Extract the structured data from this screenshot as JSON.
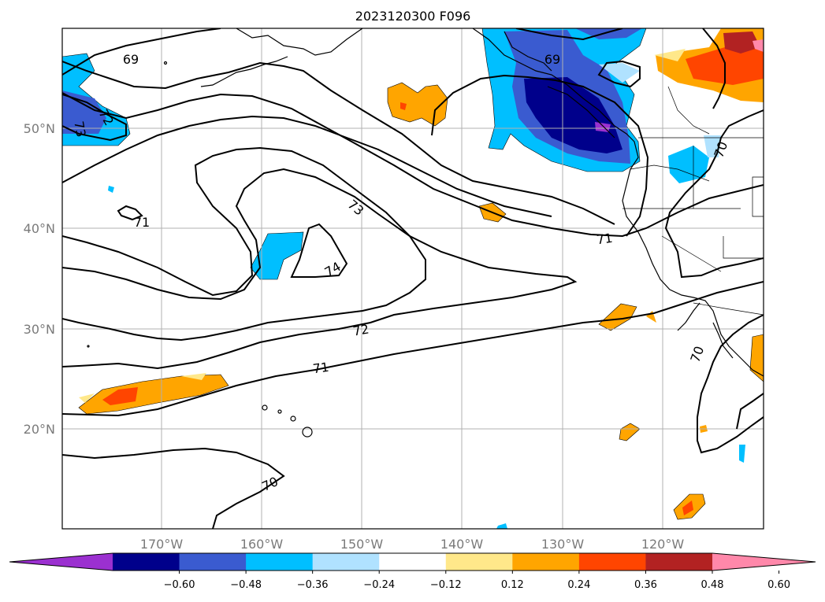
{
  "title": "2023120300 F096",
  "longitude_labels": [
    "170°W",
    "160°W",
    "150°W",
    "140°W",
    "130°W",
    "120°W"
  ],
  "latitude_labels": [
    "50°N",
    "40°N",
    "30°N",
    "20°N"
  ],
  "contour_labels": [
    "69",
    "69",
    "73",
    "72",
    "71",
    "73",
    "71",
    "74",
    "72",
    "71",
    "70",
    "70",
    "70"
  ],
  "colorbar": {
    "ticks": [
      "−0.60",
      "−0.48",
      "−0.36",
      "−0.24",
      "−0.12",
      "0.12",
      "0.24",
      "0.36",
      "0.48",
      "0.60"
    ],
    "colors": [
      "#9b30d0",
      "#00008b",
      "#3a5bd0",
      "#00bfff",
      "#b0e2ff",
      "#ffffff",
      "#ffe88a",
      "#ffa500",
      "#ff4500",
      "#b22222",
      "#ff88aa"
    ]
  }
}
